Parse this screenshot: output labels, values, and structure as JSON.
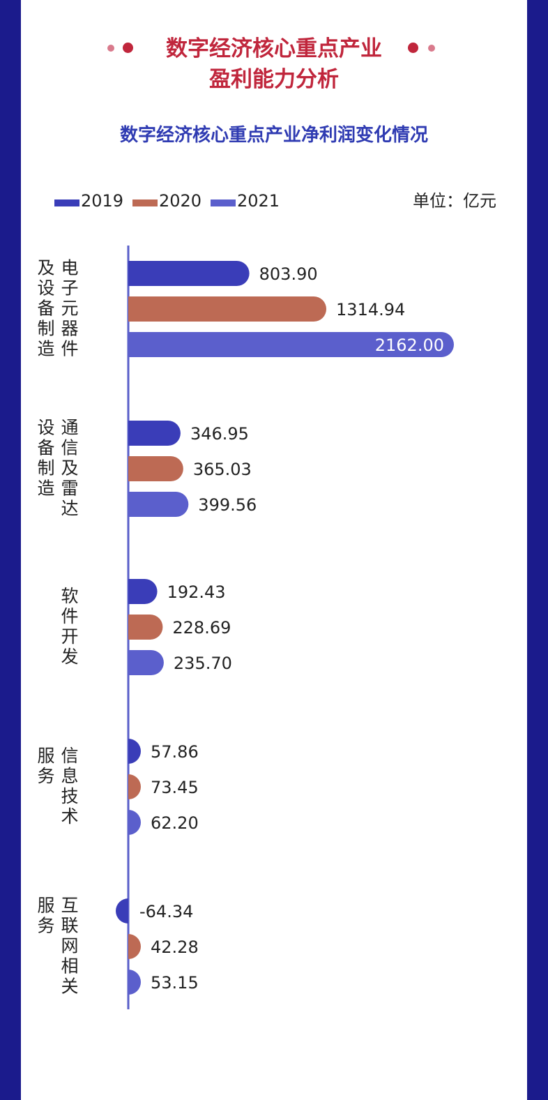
{
  "header": {
    "title_line1": "数字经济核心重点产业",
    "title_line2": "盈利能力分析"
  },
  "colors": {
    "title": "#c0263c",
    "dot_light": "#d97a8c",
    "dot_dark": "#c0263c",
    "subtitle": "#2f3bb2",
    "border": "#1b1b8c",
    "axis": "#5a5fc9"
  },
  "chart_data": {
    "type": "bar",
    "orientation": "horizontal",
    "title": "数字经济核心重点产业净利润变化情况",
    "unit_label": "单位：亿元",
    "legend_position": "top-left",
    "grid": false,
    "categories": [
      "电子元器件及设备制造",
      "通信及雷达设备制造",
      "软件开发",
      "信息技术服务",
      "互联网相关服务"
    ],
    "series": [
      {
        "name": "2019",
        "color": "#3a3db8",
        "values": [
          803.9,
          346.95,
          192.43,
          57.86,
          -64.34
        ]
      },
      {
        "name": "2020",
        "color": "#bd6a54",
        "values": [
          1314.94,
          365.03,
          228.69,
          73.45,
          42.28
        ]
      },
      {
        "name": "2021",
        "color": "#5b5fcc",
        "values": [
          2162.0,
          399.56,
          235.7,
          62.2,
          53.15
        ]
      }
    ],
    "value_labels": [
      [
        "803.90",
        "1314.94",
        "2162.00"
      ],
      [
        "346.95",
        "365.03",
        "399.56"
      ],
      [
        "192.43",
        "228.69",
        "235.70"
      ],
      [
        "57.86",
        "73.45",
        "62.20"
      ],
      [
        "-64.34",
        "42.28",
        "53.15"
      ]
    ],
    "category_label_columns": [
      [
        "电子元器件",
        "及设备制造"
      ],
      [
        "通信及雷达",
        "设备制造"
      ],
      [
        "软件开发"
      ],
      [
        "信息技术",
        "服务"
      ],
      [
        "互联网相关",
        "服务"
      ]
    ]
  }
}
